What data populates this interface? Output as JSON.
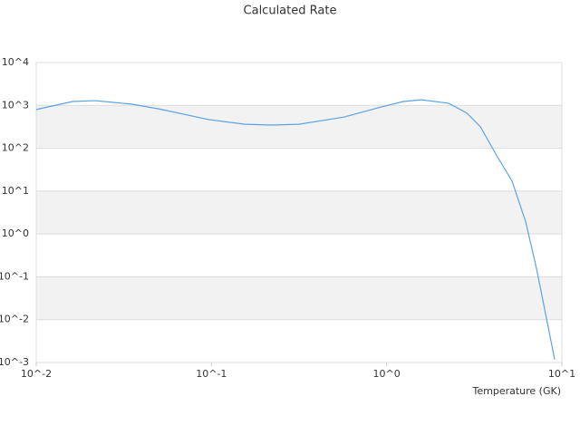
{
  "chart_data": {
    "type": "line",
    "title": "Calculated Rate",
    "x_label": "Temperature (GK)",
    "x": [
      0.01,
      0.0161,
      0.0217,
      0.0349,
      0.05,
      0.0962,
      0.155,
      0.221,
      0.316,
      0.574,
      0.925,
      1.245,
      1.58,
      2.26,
      2.87,
      3.43,
      4.35,
      5.2,
      6.22,
      7.18,
      9.1
    ],
    "values": [
      800,
      1230,
      1290,
      1070,
      830,
      467,
      363,
      347,
      363,
      537,
      912,
      1230,
      1350,
      1120,
      660,
      316,
      57,
      17,
      1.9,
      0.15,
      0.00117
    ],
    "color": "#5ba3e6",
    "xscale": "log",
    "yscale": "log",
    "xlim": [
      0.01,
      10
    ],
    "ylim": [
      0.001,
      10000
    ],
    "xticks": [
      {
        "value": 0.01,
        "label": "10^-2"
      },
      {
        "value": 0.1,
        "label": "10^-1"
      },
      {
        "value": 1,
        "label": "10^0"
      },
      {
        "value": 10,
        "label": "10^1"
      }
    ],
    "yticks": [
      {
        "value": 0.001,
        "label": "10^-3"
      },
      {
        "value": 0.01,
        "label": "10^-2"
      },
      {
        "value": 0.1,
        "label": "10^-1"
      },
      {
        "value": 1,
        "label": "10^0"
      },
      {
        "value": 10,
        "label": "10^1"
      },
      {
        "value": 100,
        "label": "10^2"
      },
      {
        "value": 1000,
        "label": "10^3"
      },
      {
        "value": 10000,
        "label": "10^4"
      }
    ],
    "grid": true
  }
}
